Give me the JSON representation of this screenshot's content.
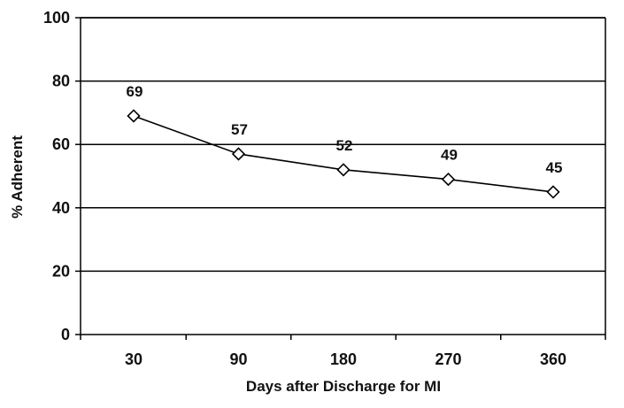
{
  "chart_data": {
    "type": "line",
    "title": "",
    "xlabel": "Days after Discharge for MI",
    "ylabel": "% Adherent",
    "categories": [
      "30",
      "90",
      "180",
      "270",
      "360"
    ],
    "series": [
      {
        "values": [
          69,
          57,
          52,
          49,
          45
        ]
      }
    ],
    "data_labels": [
      "69",
      "57",
      "52",
      "49",
      "45"
    ],
    "ylim": [
      0,
      100
    ],
    "yticks": [
      "0",
      "20",
      "40",
      "60",
      "80",
      "100"
    ],
    "grid": "horizontal",
    "legend": "none",
    "marker": "diamond-open",
    "colors": {
      "line": "#000000",
      "grid": "#000000",
      "marker_fill": "#ffffff",
      "text": "#111111"
    }
  }
}
